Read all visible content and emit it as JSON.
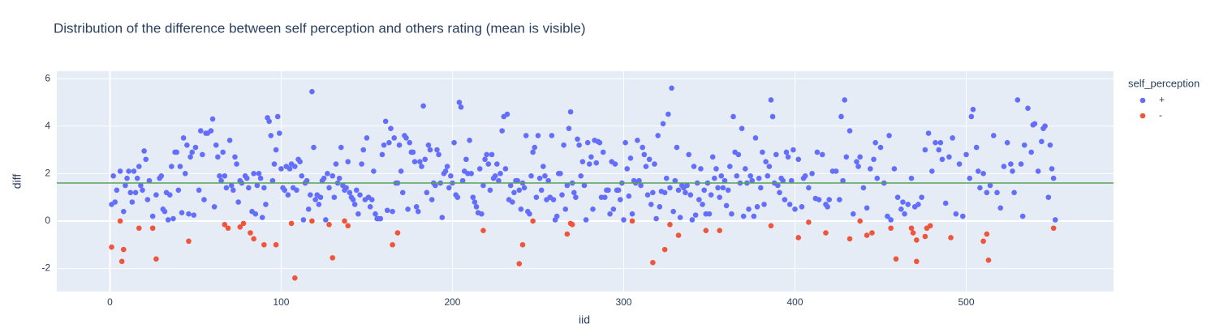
{
  "chart_data": {
    "type": "scatter",
    "title": "Distribution of the difference between self perception and others rating (mean is visible)",
    "x_label": "iid",
    "y_label": "diff",
    "legend_title": "self_perception",
    "legend_position": "right",
    "xlim": [
      -31,
      586
    ],
    "ylim": [
      -2.97,
      6.31
    ],
    "xticks": [
      0,
      100,
      200,
      300,
      400,
      500
    ],
    "yticks": [
      -2,
      0,
      2,
      4,
      6
    ],
    "grid": true,
    "background": "#e5ecf6",
    "mean_line": 1.6,
    "mean_line_color": "#5aa05a",
    "series": [
      {
        "name": "+",
        "color": "#636efa",
        "x": [
          1,
          2,
          3,
          4,
          6,
          8,
          9,
          10,
          11,
          12,
          13,
          14,
          15,
          16,
          17,
          18,
          19,
          20,
          21,
          22,
          23,
          25,
          27,
          29,
          30,
          31,
          32,
          33,
          34,
          35,
          36,
          37,
          38,
          39,
          40,
          41,
          42,
          43,
          44,
          45,
          46,
          47,
          48,
          49,
          50,
          52,
          53,
          54,
          55,
          56,
          57,
          59,
          60,
          61,
          62,
          63,
          64,
          65,
          66,
          67,
          68,
          70,
          71,
          72,
          73,
          74,
          75,
          76,
          77,
          79,
          80,
          81,
          83,
          84,
          85,
          86,
          87,
          88,
          89,
          90,
          91,
          92,
          93,
          94,
          95,
          96,
          97,
          98,
          99,
          100,
          101,
          102,
          103,
          104,
          105,
          106,
          107,
          108,
          109,
          110,
          111,
          112,
          113,
          114,
          115,
          116,
          117,
          118,
          119,
          120,
          121,
          122,
          123,
          124,
          125,
          126,
          127,
          128,
          130,
          131,
          132,
          133,
          134,
          135,
          136,
          137,
          138,
          139,
          140,
          141,
          142,
          143,
          144,
          145,
          146,
          147,
          148,
          149,
          150,
          151,
          152,
          153,
          154,
          155,
          156,
          157,
          158,
          159,
          160,
          161,
          162,
          163,
          164,
          165,
          166,
          167,
          168,
          169,
          170,
          171,
          172,
          173,
          174,
          175,
          176,
          177,
          178,
          179,
          180,
          181,
          182,
          183,
          184,
          185,
          186,
          187,
          188,
          189,
          190,
          191,
          192,
          193,
          194,
          195,
          196,
          197,
          198,
          199,
          200,
          201,
          202,
          203,
          204,
          205,
          206,
          207,
          208,
          209,
          210,
          211,
          212,
          213,
          214,
          215,
          216,
          217,
          218,
          219,
          220,
          221,
          222,
          223,
          224,
          225,
          226,
          227,
          228,
          229,
          230,
          231,
          232,
          233,
          234,
          235,
          236,
          237,
          238,
          239,
          240,
          241,
          242,
          243,
          244,
          245,
          246,
          247,
          248,
          249,
          250,
          251,
          252,
          253,
          254,
          255,
          256,
          257,
          258,
          259,
          260,
          261,
          262,
          263,
          264,
          265,
          266,
          267,
          268,
          269,
          270,
          271,
          272,
          273,
          274,
          275,
          276,
          277,
          278,
          279,
          280,
          281,
          282,
          283,
          284,
          285,
          286,
          287,
          288,
          289,
          290,
          291,
          292,
          293,
          294,
          295,
          296,
          297,
          298,
          299,
          300,
          301,
          302,
          303,
          304,
          305,
          306,
          307,
          308,
          309,
          310,
          311,
          312,
          313,
          314,
          315,
          316,
          317,
          318,
          319,
          320,
          321,
          322,
          323,
          324,
          325,
          326,
          327,
          328,
          329,
          330,
          331,
          332,
          333,
          334,
          335,
          336,
          337,
          338,
          339,
          340,
          341,
          342,
          343,
          344,
          345,
          346,
          347,
          348,
          349,
          350,
          351,
          352,
          353,
          354,
          355,
          356,
          357,
          358,
          359,
          360,
          361,
          362,
          363,
          364,
          365,
          366,
          367,
          368,
          369,
          370,
          371,
          372,
          373,
          374,
          375,
          376,
          377,
          378,
          379,
          380,
          381,
          382,
          383,
          384,
          385,
          386,
          387,
          388,
          389,
          390,
          391,
          392,
          393,
          394,
          395,
          396,
          397,
          398,
          399,
          400,
          402,
          404,
          406,
          408,
          410,
          412,
          414,
          416,
          418,
          420,
          422,
          424,
          426,
          428,
          430,
          432,
          434,
          436,
          438,
          440,
          442,
          444,
          446,
          448,
          450,
          452,
          454,
          456,
          458,
          460,
          462,
          464,
          466,
          468,
          470,
          472,
          474,
          476,
          478,
          480,
          482,
          484,
          486,
          488,
          490,
          492,
          494,
          496,
          498,
          500,
          502,
          504,
          506,
          508,
          510,
          512,
          514,
          516,
          518,
          520,
          522,
          524,
          526,
          528,
          530,
          532,
          534,
          536,
          538,
          540,
          542,
          544,
          546,
          548,
          549,
          550,
          551,
          552,
          405,
          413,
          419,
          427,
          429,
          437,
          447,
          455,
          463,
          485,
          503,
          507,
          527,
          533,
          539,
          545
        ],
        "values": [
          0.7,
          1.9,
          0.8,
          1.3,
          2.1,
          0.4,
          1.5,
          1.8,
          2.1,
          1.2,
          0.8,
          2.1,
          1.2,
          1.8,
          2.3,
          1.5,
          1.3,
          2.95,
          2.6,
          0.9,
          1.7,
          0.2,
          1.1,
          1.8,
          1.9,
          0.5,
          0.4,
          1.2,
          0.05,
          1.1,
          2.3,
          0.1,
          2.9,
          2.9,
          1.3,
          2.3,
          0.35,
          3.5,
          2.0,
          3.2,
          0.3,
          2.7,
          2.9,
          0.25,
          3.1,
          1.3,
          3.8,
          2.8,
          0.9,
          3.7,
          3.7,
          3.8,
          4.3,
          0.6,
          3.2,
          2.7,
          1.9,
          1.7,
          2.9,
          1.9,
          1.4,
          3.4,
          1.5,
          1.3,
          2.7,
          2.4,
          0.8,
          1.7,
          1.6,
          1.9,
          1.8,
          1.4,
          0.4,
          2.0,
          0.3,
          1.5,
          2.0,
          1.8,
          0.15,
          1.4,
          0.7,
          4.35,
          4.2,
          3.6,
          1.7,
          2.4,
          3.0,
          4.4,
          3.7,
          2.2,
          1.4,
          1.3,
          2.3,
          1.1,
          2.2,
          2.4,
          1.4,
          2.3,
          1.3,
          2.6,
          2.5,
          1.9,
          0.05,
          1.6,
          1.7,
          0.5,
          1.1,
          5.45,
          3.1,
          0.9,
          1.1,
          0.7,
          1.0,
          1.7,
          1.8,
          0.05,
          2.0,
          1.4,
          1.9,
          1.0,
          2.4,
          1.6,
          1.8,
          3.1,
          1.5,
          1.3,
          1.4,
          2.5,
          1.2,
          1.0,
          0.9,
          0.7,
          1.3,
          0.3,
          1.1,
          2.4,
          3.0,
          0.9,
          3.5,
          1.0,
          0.6,
          0.9,
          2.1,
          0.3,
          0.1,
          0.1,
          0.1,
          2.8,
          3.2,
          4.2,
          0.45,
          3.3,
          3.9,
          0.4,
          3.5,
          1.6,
          1.6,
          3.2,
          2.1,
          1.2,
          3.6,
          3.5,
          0.5,
          3.3,
          2.9,
          2.9,
          2.5,
          0.6,
          0.4,
          2.5,
          2.3,
          4.85,
          2.6,
          1.2,
          3.2,
          3.0,
          0.9,
          1.6,
          1.5,
          3.0,
          2.8,
          1.6,
          0.15,
          2.0,
          2.1,
          2.3,
          1.4,
          1.9,
          1.6,
          3.3,
          1.1,
          1.0,
          5.0,
          4.8,
          1.7,
          2.1,
          2.6,
          2.0,
          3.4,
          2.0,
          1.0,
          0.8,
          0.6,
          0.35,
          2.2,
          0.3,
          1.5,
          2.6,
          2.8,
          2.4,
          1.3,
          2.8,
          1.8,
          1.9,
          2.4,
          1.7,
          2.0,
          3.8,
          4.4,
          2.2,
          4.5,
          0.9,
          1.5,
          0.8,
          1.2,
          1.7,
          1.7,
          1.3,
          0.5,
          1.6,
          1.4,
          3.6,
          0.4,
          0.3,
          1.9,
          2.9,
          3.1,
          1.0,
          3.6,
          1.8,
          1.3,
          2.3,
          1.9,
          0.9,
          1.7,
          1.0,
          3.6,
          0.9,
          0.05,
          0.2,
          2.0,
          2.0,
          1.1,
          3.2,
          0.5,
          1.5,
          3.9,
          4.6,
          1.6,
          1.2,
          1.0,
          3.45,
          3.2,
          1.9,
          2.5,
          1.5,
          0.05,
          3.3,
          2.4,
          2.7,
          0.5,
          3.4,
          2.45,
          3.35,
          3.3,
          1.0,
          2.9,
          1.0,
          1.3,
          1.3,
          0.3,
          2.5,
          0.5,
          2.4,
          1.3,
          1.3,
          0.9,
          1.6,
          0.05,
          3.3,
          2.2,
          1.05,
          2.65,
          0.3,
          1.7,
          1.6,
          3.4,
          1.7,
          1.5,
          3.1,
          2.8,
          2.3,
          1.1,
          2.6,
          0.7,
          1.2,
          2.4,
          0.1,
          3.6,
          0.6,
          1.25,
          4.1,
          1.2,
          1.8,
          4.5,
          1.4,
          5.6,
          0.4,
          1.7,
          3.1,
          1.3,
          0.15,
          1.5,
          1.4,
          1.2,
          1.5,
          2.8,
          1.1,
          0.05,
          2.3,
          0.25,
          1.6,
          0.9,
          2.2,
          0.7,
          1.3,
          0.3,
          1.6,
          0.3,
          1.1,
          2.7,
          1.8,
          2.2,
          1.4,
          1.0,
          1.9,
          1.4,
          1.7,
          0.65,
          1.3,
          2.3,
          0.3,
          4.4,
          2.9,
          1.9,
          2.8,
          1.6,
          3.9,
          0.2,
          2.2,
          1.6,
          0.5,
          1.9,
          1.7,
          0.2,
          3.5,
          0.6,
          1.8,
          1.4,
          2.9,
          0.7,
          2.5,
          1.9,
          2.3,
          5.1,
          4.4,
          1.6,
          2.8,
          1.5,
          1.2,
          1.8,
          1.7,
          0.9,
          2.9,
          2.7,
          0.7,
          1.7,
          3.0,
          0.5,
          2.6,
          0.6,
          1.9,
          1.4,
          2.0,
          0.95,
          0.9,
          2.8,
          0.7,
          0.9,
          2.1,
          2.1,
          0.9,
          1.7,
          2.7,
          3.8,
          0.3,
          2.5,
          2.7,
          1.4,
          0.55,
          2.2,
          2.6,
          1.8,
          3.1,
          1.6,
          0.2,
          0.05,
          2.2,
          1.0,
          0.5,
          0.3,
          0.7,
          1.8,
          0.6,
          0.7,
          1.0,
          3.0,
          3.7,
          2.1,
          3.3,
          3.0,
          2.6,
          0.75,
          2.7,
          3.5,
          0.3,
          2.4,
          0.2,
          2.8,
          1.8,
          4.7,
          3.1,
          1.4,
          2.0,
          1.2,
          1.5,
          3.6,
          1.2,
          0.55,
          2.3,
          3.3,
          2.4,
          1.2,
          5.1,
          2.4,
          3.2,
          4.75,
          2.9,
          4.1,
          2.1,
          3.35,
          4.0,
          1.0,
          3.2,
          2.2,
          1.8,
          0.05,
          1.8,
          2.9,
          0.6,
          4.4,
          5.1,
          2.3,
          3.3,
          3.6,
          0.8,
          3.3,
          4.4,
          2.1,
          2.1,
          0.2,
          4.05,
          3.9
        ]
      },
      {
        "name": "-",
        "color": "#ef553b",
        "x": [
          1,
          6,
          7,
          8,
          17,
          25,
          27,
          46,
          67,
          69,
          76,
          78,
          82,
          84,
          90,
          97,
          106,
          108,
          118,
          128,
          130,
          137,
          139,
          165,
          168,
          218,
          239,
          241,
          247,
          267,
          269,
          270,
          305,
          317,
          324,
          327,
          332,
          348,
          356,
          386,
          402,
          408,
          418,
          432,
          438,
          442,
          445,
          456,
          459,
          468,
          469,
          471,
          471,
          476,
          477,
          479,
          491,
          510,
          512,
          513,
          551
        ],
        "values": [
          -1.1,
          0,
          -1.7,
          -1.2,
          -0.3,
          -0.3,
          -1.6,
          -0.85,
          -0.15,
          -0.3,
          -0.25,
          -0.1,
          -0.5,
          -0.75,
          -1.0,
          -1.0,
          -0.1,
          -2.4,
          0,
          -0.15,
          -1.55,
          0,
          -0.2,
          -1.0,
          -0.5,
          -0.4,
          -1.8,
          -1.0,
          0,
          -0.55,
          -0.1,
          -0.15,
          0,
          -1.75,
          -1.2,
          -0.15,
          -0.6,
          -0.4,
          -0.4,
          -0.2,
          -0.7,
          -0.05,
          -0.5,
          -0.75,
          0,
          -0.6,
          -0.5,
          -0.3,
          -1.6,
          -0.3,
          -0.5,
          -0.8,
          -1.7,
          -0.65,
          -0.3,
          -0.2,
          -0.7,
          -0.85,
          -0.55,
          -1.65,
          -0.3
        ]
      }
    ]
  }
}
